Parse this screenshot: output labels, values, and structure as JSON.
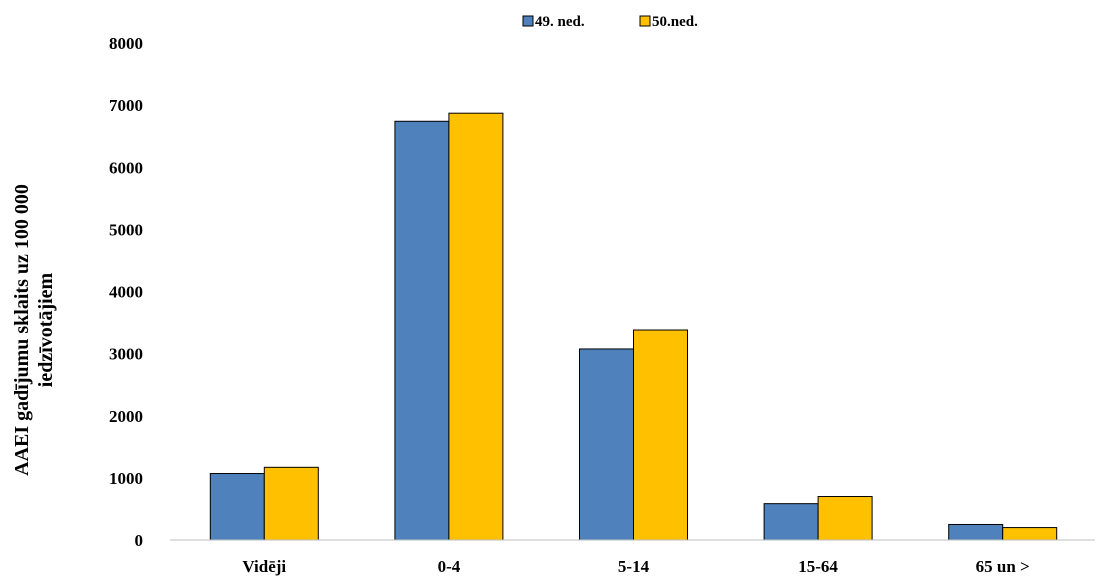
{
  "chart_data": {
    "type": "bar",
    "categories": [
      "Vidēji",
      "0-4",
      "5-14",
      "15-64",
      "65 un >"
    ],
    "series": [
      {
        "name": "49. ned.",
        "values": [
          1070,
          6740,
          3075,
          585,
          250
        ],
        "color": "#4F81BD"
      },
      {
        "name": "50.ned.",
        "values": [
          1170,
          6870,
          3380,
          700,
          200
        ],
        "color": "#FFC000"
      }
    ],
    "title": "",
    "xlabel": "",
    "ylabel_lines": [
      "AAEI gadījumu sklaits uz 100 000",
      "iedzīvotājiem"
    ],
    "ylim": [
      0,
      8000
    ],
    "yticks": [
      0,
      1000,
      2000,
      3000,
      4000,
      5000,
      6000,
      7000,
      8000
    ],
    "grid": false,
    "legend_position": "top-center"
  }
}
